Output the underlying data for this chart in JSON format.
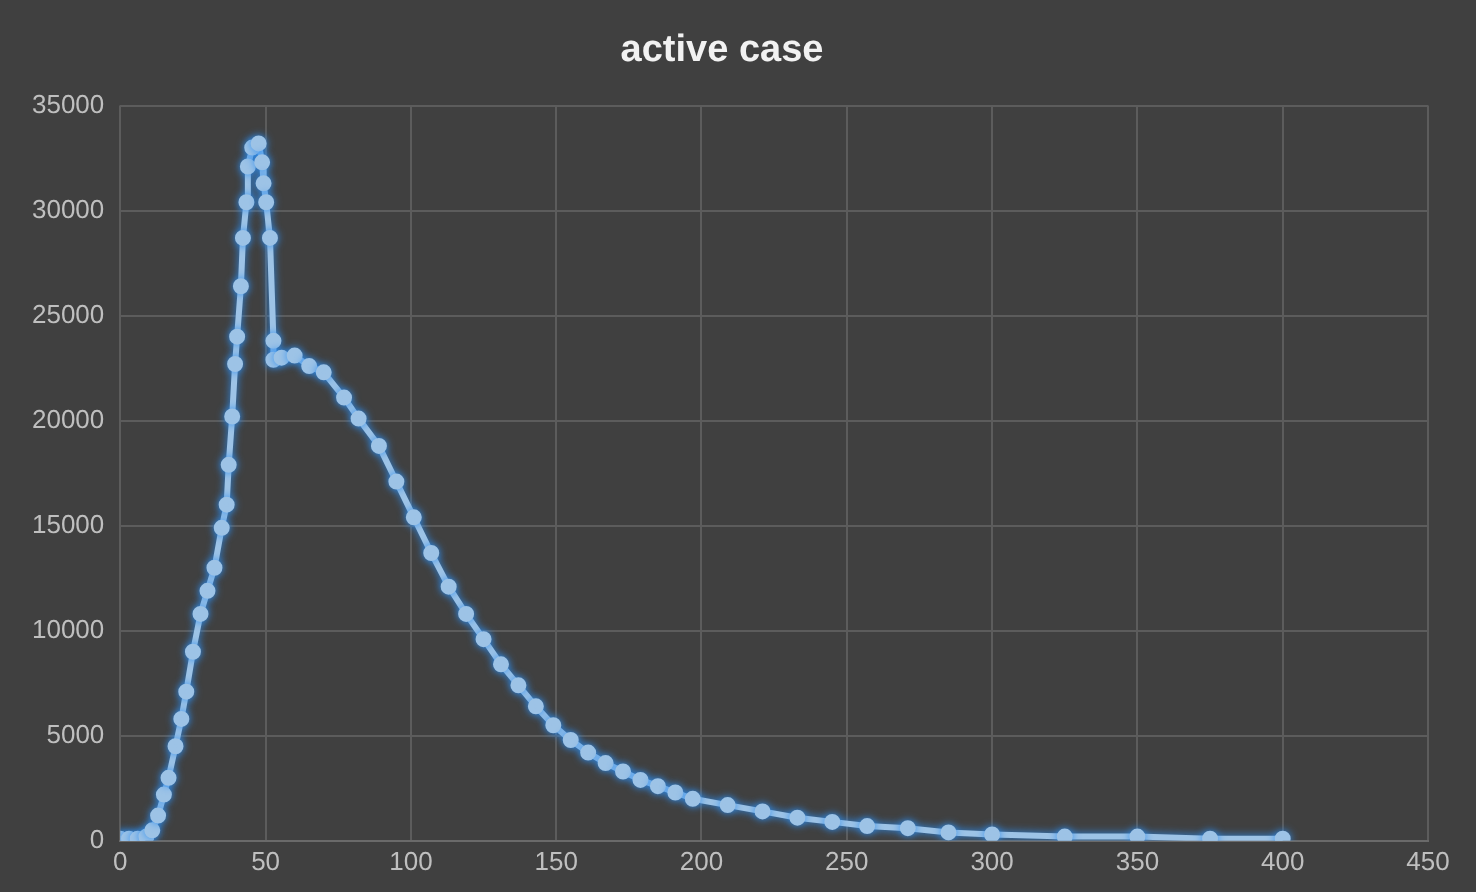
{
  "chart_data": {
    "type": "line",
    "title": "active case",
    "marker": "circle",
    "line_style": "solid",
    "grid": true,
    "legend": false,
    "xlim": [
      0,
      450
    ],
    "xticks": [
      0,
      50,
      100,
      150,
      200,
      250,
      300,
      350,
      400,
      450
    ],
    "ylim": [
      0,
      35000
    ],
    "yticks": [
      0,
      5000,
      10000,
      15000,
      20000,
      25000,
      30000,
      35000
    ],
    "series": [
      {
        "color": "#9dc3e6",
        "x": [
          0,
          3,
          6,
          9,
          11,
          13,
          15,
          16.6,
          19,
          21,
          22.7,
          25,
          27.6,
          30,
          32.4,
          34.9,
          36.6,
          37.3,
          38.5,
          39.5,
          40.2,
          41.5,
          42.2,
          43.4,
          43.9,
          45.4,
          47.6,
          48.8,
          49.3,
          50.2,
          51.5,
          52.7,
          52.7,
          55.5,
          60,
          65,
          70,
          77,
          82,
          89,
          95,
          101,
          107,
          113,
          119,
          125,
          131,
          137,
          143,
          149,
          155,
          161,
          167,
          173,
          179,
          185,
          191,
          197,
          209,
          221,
          233,
          245,
          257,
          271,
          285,
          300,
          325,
          350,
          375,
          400
        ],
        "values": [
          100,
          100,
          100,
          200,
          500,
          1200,
          2200,
          3000,
          4500,
          5800,
          7100,
          9000,
          10800,
          11900,
          13000,
          14900,
          16000,
          17900,
          20200,
          22700,
          24000,
          26400,
          28700,
          30400,
          32100,
          33000,
          33200,
          32300,
          31300,
          30400,
          28700,
          23800,
          22900,
          23000,
          23100,
          22600,
          22300,
          21100,
          20100,
          18800,
          17100,
          15400,
          13700,
          12100,
          10800,
          9600,
          8400,
          7400,
          6400,
          5500,
          4800,
          4200,
          3700,
          3300,
          2900,
          2600,
          2300,
          2000,
          1700,
          1400,
          1100,
          900,
          700,
          600,
          400,
          300,
          200,
          200,
          100,
          100
        ]
      }
    ]
  }
}
